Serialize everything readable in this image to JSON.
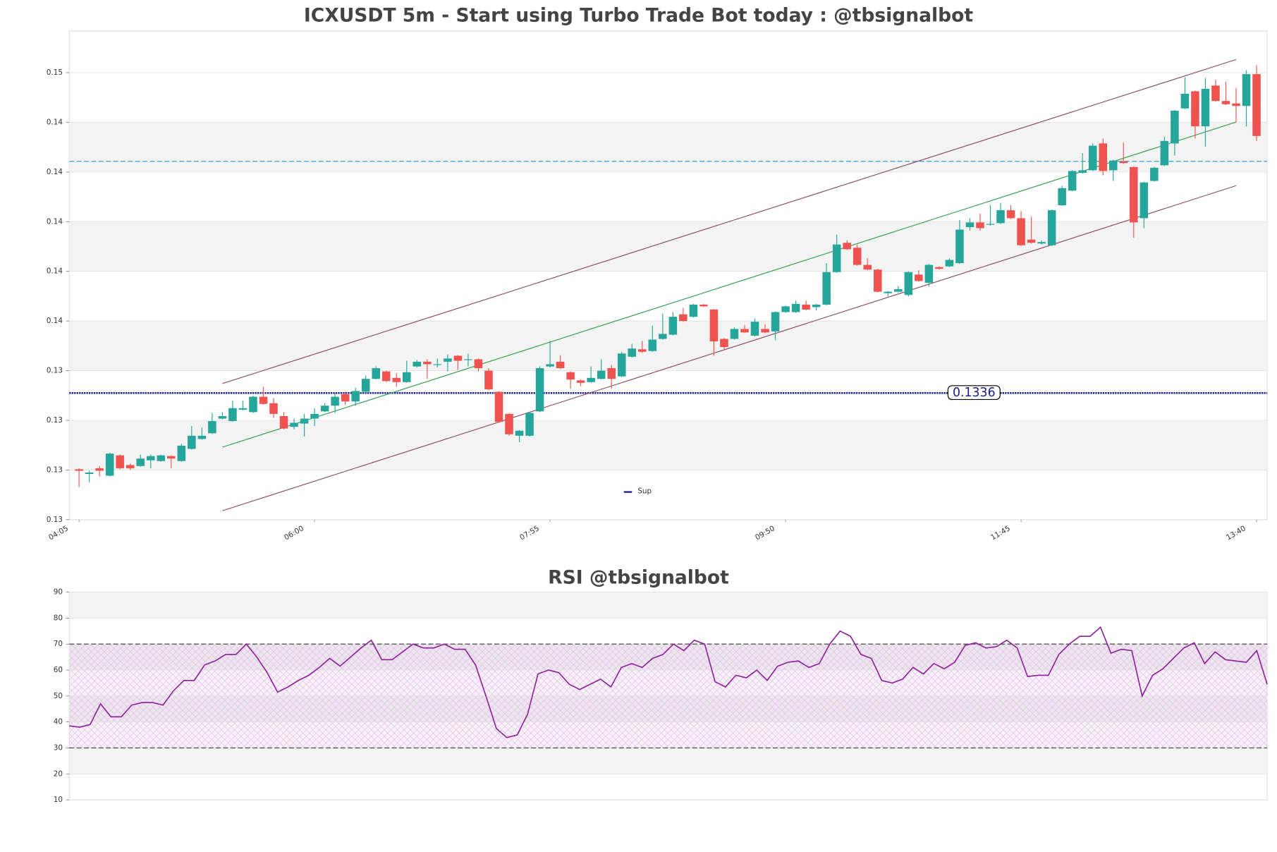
{
  "chart_data": [
    {
      "type": "candlestick",
      "title": "ICXUSDT 5m - Start using Turbo Trade Bot today : @tbsignalbot",
      "categories": [
        "04:05",
        null,
        null,
        null,
        null,
        null,
        null,
        null,
        null,
        null,
        null,
        null,
        null,
        null,
        null,
        null,
        null,
        null,
        null,
        null,
        null,
        null,
        null,
        "06:00",
        null,
        null,
        null,
        null,
        null,
        null,
        null,
        null,
        null,
        null,
        null,
        null,
        null,
        null,
        null,
        null,
        null,
        null,
        null,
        null,
        null,
        null,
        "07:55",
        null,
        null,
        null,
        null,
        null,
        null,
        null,
        null,
        null,
        null,
        null,
        null,
        null,
        null,
        null,
        null,
        null,
        null,
        null,
        null,
        null,
        null,
        "09:50",
        null,
        null,
        null,
        null,
        null,
        null,
        null,
        null,
        null,
        null,
        null,
        null,
        null,
        null,
        null,
        null,
        null,
        null,
        null,
        null,
        null,
        null,
        "11:45",
        null,
        null,
        null,
        null,
        null,
        null,
        null,
        null,
        null,
        null,
        null,
        null,
        null,
        null,
        null,
        null,
        null,
        null,
        null,
        null,
        null,
        null,
        "13:40"
      ],
      "open": [
        0.13053,
        0.13034,
        0.13057,
        0.13027,
        0.13109,
        0.1307,
        0.13066,
        0.13089,
        0.13086,
        0.13106,
        0.13086,
        0.13135,
        0.13175,
        0.13198,
        0.13257,
        0.13247,
        0.13293,
        0.13283,
        0.13345,
        0.13319,
        0.13267,
        0.13224,
        0.13237,
        0.13257,
        0.13286,
        0.13309,
        0.13355,
        0.13326,
        0.13365,
        0.13417,
        0.13447,
        0.13421,
        0.13404,
        0.13467,
        0.13486,
        0.13473,
        0.13486,
        0.1351,
        0.13493,
        0.13496,
        0.1345,
        0.13365,
        0.13276,
        0.13188,
        0.13188,
        0.13286,
        0.13467,
        0.13486,
        0.13444,
        0.13411,
        0.13404,
        0.13417,
        0.1346,
        0.13427,
        0.13506,
        0.13536,
        0.13529,
        0.13578,
        0.13595,
        0.13677,
        0.13667,
        0.13716,
        0.13696,
        0.13578,
        0.13578,
        0.13618,
        0.13591,
        0.13618,
        0.13608,
        0.13686,
        0.13686,
        0.13716,
        0.13706,
        0.13716,
        0.13847,
        0.13965,
        0.13945,
        0.13876,
        0.13857,
        0.13762,
        0.13768,
        0.13755,
        0.13837,
        0.13804,
        0.13867,
        0.1387,
        0.13883,
        0.14028,
        0.14047,
        0.14038,
        0.14044,
        0.14096,
        0.14064,
        0.13978,
        0.13962,
        0.13955,
        0.14116,
        0.14175,
        0.14247,
        0.14257,
        0.14365,
        0.14257,
        0.14293,
        0.1427,
        0.14064,
        0.14214,
        0.14277,
        0.14365,
        0.14506,
        0.14575,
        0.14434,
        0.14598,
        0.14536,
        0.14526,
        0.14516,
        0.14644
      ],
      "high": [
        0.13057,
        0.13047,
        0.13066,
        0.13119,
        0.13112,
        0.13076,
        0.13112,
        0.13112,
        0.13112,
        0.13109,
        0.13155,
        0.13227,
        0.13221,
        0.1328,
        0.13283,
        0.13329,
        0.13329,
        0.13349,
        0.13385,
        0.13339,
        0.13283,
        0.13257,
        0.13276,
        0.13299,
        0.13319,
        0.13358,
        0.13365,
        0.13381,
        0.1343,
        0.13467,
        0.1345,
        0.1344,
        0.1349,
        0.13493,
        0.13496,
        0.13499,
        0.13516,
        0.13513,
        0.13519,
        0.13499,
        0.1346,
        0.13368,
        0.1328,
        0.13211,
        0.13283,
        0.13467,
        0.1357,
        0.13512,
        0.13447,
        0.13414,
        0.13467,
        0.13496,
        0.13473,
        0.13526,
        0.13558,
        0.1357,
        0.13631,
        0.1368,
        0.13686,
        0.13703,
        0.13719,
        0.13719,
        0.13699,
        0.13581,
        0.13624,
        0.13634,
        0.1366,
        0.13637,
        0.13689,
        0.13713,
        0.13732,
        0.13732,
        0.13719,
        0.13883,
        0.13998,
        0.13975,
        0.13958,
        0.13903,
        0.1386,
        0.13771,
        0.13791,
        0.1385,
        0.13854,
        0.1388,
        0.1387,
        0.13902,
        0.14057,
        0.14064,
        0.14083,
        0.14116,
        0.14126,
        0.14116,
        0.14093,
        0.1407,
        0.13975,
        0.14099,
        0.14195,
        0.14257,
        0.14326,
        0.14365,
        0.14385,
        0.143,
        0.14369,
        0.14273,
        0.14211,
        0.1427,
        0.14392,
        0.145,
        0.14631,
        0.14578,
        0.14628,
        0.14621,
        0.14614,
        0.14588,
        0.1466,
        0.1468
      ],
      "low": [
        0.12981,
        0.13001,
        0.13024,
        0.13024,
        0.13053,
        0.1305,
        0.13063,
        0.13057,
        0.13083,
        0.13057,
        0.13083,
        0.13132,
        0.13172,
        0.13195,
        0.13254,
        0.13244,
        0.1329,
        0.1328,
        0.13313,
        0.1326,
        0.13214,
        0.13214,
        0.13185,
        0.13227,
        0.13283,
        0.1328,
        0.13312,
        0.13309,
        0.13362,
        0.13414,
        0.13404,
        0.13385,
        0.13401,
        0.13463,
        0.13417,
        0.13463,
        0.13447,
        0.13454,
        0.13467,
        0.13447,
        0.13372,
        0.13241,
        0.13188,
        0.13162,
        0.13185,
        0.13283,
        0.13463,
        0.13457,
        0.13378,
        0.13388,
        0.13401,
        0.13414,
        0.13378,
        0.13424,
        0.13503,
        0.13522,
        0.13526,
        0.13575,
        0.13592,
        0.13647,
        0.13664,
        0.13706,
        0.1351,
        0.13536,
        0.13575,
        0.13601,
        0.13588,
        0.13601,
        0.13572,
        0.13683,
        0.13683,
        0.13693,
        0.13693,
        0.13713,
        0.13844,
        0.13936,
        0.13873,
        0.13854,
        0.13765,
        0.13749,
        0.13765,
        0.13749,
        0.13808,
        0.13788,
        0.13857,
        0.13867,
        0.1388,
        0.14014,
        0.14014,
        0.14034,
        0.14041,
        0.1406,
        0.13952,
        0.13962,
        0.13958,
        0.13952,
        0.14113,
        0.14172,
        0.14244,
        0.14254,
        0.14237,
        0.14214,
        0.14283,
        0.13985,
        0.14024,
        0.14211,
        0.14274,
        0.14316,
        0.14503,
        0.14385,
        0.14352,
        0.14533,
        0.1452,
        0.14451,
        0.14434,
        0.14375
      ],
      "close": [
        0.13047,
        0.1304,
        0.13047,
        0.13116,
        0.13057,
        0.13057,
        0.13096,
        0.13106,
        0.13109,
        0.13096,
        0.13148,
        0.13188,
        0.13188,
        0.13247,
        0.13267,
        0.13299,
        0.13299,
        0.13345,
        0.13316,
        0.13276,
        0.13217,
        0.1324,
        0.13257,
        0.13276,
        0.13309,
        0.13345,
        0.13326,
        0.13368,
        0.13417,
        0.1346,
        0.13408,
        0.13404,
        0.13444,
        0.13486,
        0.13476,
        0.13476,
        0.13499,
        0.1349,
        0.13496,
        0.1346,
        0.13375,
        0.13244,
        0.13194,
        0.13208,
        0.1328,
        0.1346,
        0.13476,
        0.1346,
        0.13414,
        0.13401,
        0.13421,
        0.1345,
        0.13417,
        0.13519,
        0.13539,
        0.13526,
        0.13575,
        0.13598,
        0.13667,
        0.1365,
        0.13716,
        0.13709,
        0.13568,
        0.13545,
        0.13618,
        0.13604,
        0.13647,
        0.13604,
        0.13686,
        0.13709,
        0.13719,
        0.13696,
        0.13716,
        0.13847,
        0.13958,
        0.13939,
        0.13876,
        0.13857,
        0.13768,
        0.13768,
        0.13778,
        0.13847,
        0.13811,
        0.13876,
        0.1386,
        0.13896,
        0.14018,
        0.14047,
        0.14024,
        0.14041,
        0.14096,
        0.14064,
        0.13955,
        0.13965,
        0.13968,
        0.14096,
        0.14185,
        0.14254,
        0.14257,
        0.14356,
        0.14254,
        0.14296,
        0.14286,
        0.14047,
        0.14208,
        0.14267,
        0.14375,
        0.14497,
        0.14565,
        0.14434,
        0.14585,
        0.14536,
        0.14523,
        0.14516,
        0.14644,
        0.14395
      ],
      "up_color": "#26a69a",
      "down_color": "#ef5350",
      "ylim": [
        0.1285,
        0.14818
      ],
      "yticks": [
        {
          "value": 0.1285,
          "label": "0.13"
        },
        {
          "value": 0.1305,
          "label": "0.13"
        },
        {
          "value": 0.1325,
          "label": "0.13"
        },
        {
          "value": 0.1345,
          "label": "0.13"
        },
        {
          "value": 0.1365,
          "label": "0.14"
        },
        {
          "value": 0.1385,
          "label": "0.14"
        },
        {
          "value": 0.1405,
          "label": "0.14"
        },
        {
          "value": 0.1425,
          "label": "0.14"
        },
        {
          "value": 0.1445,
          "label": "0.14"
        },
        {
          "value": 0.1465,
          "label": "0.15"
        }
      ],
      "grid": true,
      "hlines": [
        {
          "name": "Sup",
          "value": 0.1336,
          "label": "0.1336",
          "color": "#1c1c8c"
        },
        {
          "value": 0.14293,
          "color": "#4aa8d8"
        }
      ],
      "channels": [
        {
          "x": [
            14,
            113
          ],
          "values": [
            0.13398,
            0.14703
          ],
          "color": "#8a4a66"
        },
        {
          "x": [
            14,
            113
          ],
          "values": [
            0.13142,
            0.14451
          ],
          "color": "#2e9e4f"
        },
        {
          "x": [
            14,
            113
          ],
          "values": [
            0.12886,
            0.14195
          ],
          "color": "#8a4a66"
        }
      ],
      "legend": "lower center"
    },
    {
      "type": "line",
      "title": "RSI @tbsignalbot",
      "series": [
        {
          "color": "#8e1e9b",
          "values": [
            38.5,
            38,
            39,
            47,
            42,
            42,
            46.5,
            47.5,
            47.5,
            46.5,
            52,
            56,
            56,
            62,
            63.5,
            66,
            66,
            70,
            65,
            59,
            51.5,
            53.5,
            56,
            58,
            61,
            64.5,
            61.5,
            65,
            68.5,
            71.5,
            64,
            64,
            67,
            70,
            68.5,
            68.5,
            70,
            68,
            68,
            62,
            50,
            37.5,
            34,
            35,
            43,
            58.5,
            60,
            59,
            54.5,
            52.5,
            54.5,
            56.5,
            53.5,
            61,
            62.5,
            61,
            64.5,
            66,
            70,
            67.5,
            71.5,
            70,
            55.5,
            53.5,
            58,
            57,
            60,
            56,
            61.5,
            63,
            63.5,
            61,
            62.5,
            70,
            75,
            73,
            66,
            64.5,
            56,
            55,
            56.5,
            61,
            58.5,
            62.5,
            60.5,
            63,
            69.5,
            70.5,
            68.5,
            69,
            71.5,
            68.5,
            57.5,
            58,
            58,
            66,
            70,
            73,
            73,
            76.5,
            66.5,
            68,
            67.5,
            50,
            58,
            60.5,
            64.5,
            68.5,
            70.5,
            62.5,
            67,
            64,
            63.5,
            63,
            67.5,
            54.5
          ]
        }
      ],
      "ylim": [
        10,
        90
      ],
      "yticks": [
        10,
        20,
        30,
        40,
        50,
        60,
        70,
        80,
        90
      ],
      "grid": true,
      "hlines": [
        {
          "value": 70,
          "color": "#555555"
        },
        {
          "value": 30,
          "color": "#555555"
        }
      ],
      "band": {
        "range": [
          30,
          70
        ],
        "color": "#c58ed0"
      }
    }
  ]
}
